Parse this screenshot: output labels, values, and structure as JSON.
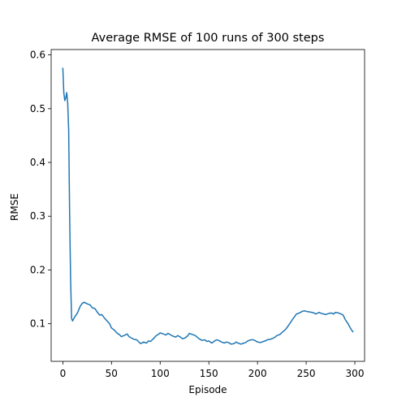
{
  "chart_data": {
    "type": "line",
    "title": "Average RMSE of 100 runs of 300 steps",
    "xlabel": "Episode",
    "ylabel": "RMSE",
    "xlim": [
      -12,
      310
    ],
    "ylim": [
      0.03,
      0.61
    ],
    "xticks": [
      0,
      50,
      100,
      150,
      200,
      250,
      300
    ],
    "yticks": [
      0.1,
      0.2,
      0.3,
      0.4,
      0.5,
      0.6
    ],
    "xtick_labels": [
      "0",
      "50",
      "100",
      "150",
      "200",
      "250",
      "300"
    ],
    "ytick_labels": [
      "0.1",
      "0.2",
      "0.3",
      "0.4",
      "0.5",
      "0.6"
    ],
    "grid": false,
    "series": [
      {
        "color": "#1f77b4",
        "x": [
          0,
          1,
          2,
          3,
          4,
          5,
          6,
          7,
          8,
          9,
          10,
          12,
          15,
          18,
          20,
          22,
          25,
          28,
          30,
          33,
          36,
          38,
          40,
          43,
          46,
          48,
          50,
          53,
          56,
          58,
          60,
          63,
          66,
          68,
          70,
          73,
          76,
          78,
          80,
          83,
          86,
          88,
          90,
          93,
          96,
          98,
          100,
          103,
          106,
          108,
          110,
          113,
          116,
          118,
          120,
          123,
          126,
          128,
          130,
          133,
          136,
          138,
          140,
          143,
          146,
          148,
          150,
          153,
          156,
          158,
          160,
          163,
          166,
          168,
          170,
          173,
          176,
          178,
          180,
          183,
          186,
          188,
          190,
          193,
          196,
          198,
          200,
          203,
          206,
          208,
          210,
          213,
          216,
          218,
          220,
          223,
          226,
          228,
          230,
          233,
          236,
          238,
          240,
          243,
          246,
          248,
          250,
          253,
          256,
          258,
          260,
          263,
          266,
          268,
          270,
          273,
          276,
          278,
          280,
          283,
          286,
          288,
          290,
          293,
          296,
          298
        ],
        "y": [
          0.575,
          0.53,
          0.515,
          0.52,
          0.53,
          0.51,
          0.46,
          0.3,
          0.18,
          0.11,
          0.105,
          0.112,
          0.12,
          0.133,
          0.138,
          0.14,
          0.137,
          0.135,
          0.13,
          0.128,
          0.12,
          0.116,
          0.117,
          0.11,
          0.104,
          0.1,
          0.092,
          0.088,
          0.082,
          0.08,
          0.076,
          0.078,
          0.081,
          0.076,
          0.074,
          0.071,
          0.07,
          0.066,
          0.063,
          0.066,
          0.064,
          0.068,
          0.067,
          0.072,
          0.078,
          0.08,
          0.083,
          0.081,
          0.079,
          0.082,
          0.08,
          0.077,
          0.075,
          0.078,
          0.076,
          0.072,
          0.074,
          0.077,
          0.082,
          0.08,
          0.078,
          0.075,
          0.072,
          0.069,
          0.07,
          0.067,
          0.068,
          0.064,
          0.068,
          0.07,
          0.069,
          0.066,
          0.064,
          0.066,
          0.065,
          0.062,
          0.063,
          0.066,
          0.064,
          0.062,
          0.064,
          0.065,
          0.068,
          0.07,
          0.07,
          0.068,
          0.066,
          0.065,
          0.067,
          0.068,
          0.07,
          0.071,
          0.073,
          0.075,
          0.078,
          0.08,
          0.085,
          0.088,
          0.092,
          0.1,
          0.108,
          0.113,
          0.118,
          0.12,
          0.123,
          0.124,
          0.123,
          0.122,
          0.121,
          0.12,
          0.118,
          0.121,
          0.119,
          0.118,
          0.117,
          0.119,
          0.12,
          0.118,
          0.121,
          0.12,
          0.118,
          0.116,
          0.108,
          0.1,
          0.09,
          0.085
        ]
      }
    ]
  }
}
